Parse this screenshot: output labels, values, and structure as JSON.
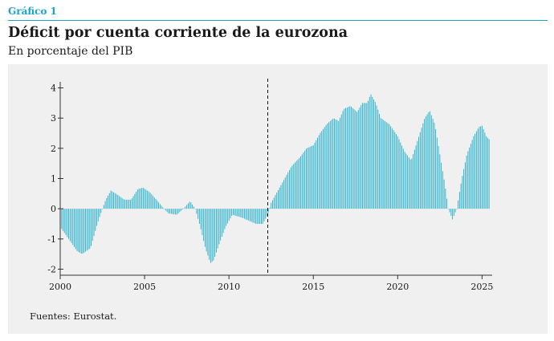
{
  "header": {
    "label": "Gráfico 1",
    "title": "Déficit por cuenta corriente de la eurozona",
    "subtitle": "En porcentaje del PIB"
  },
  "footer": {
    "source": "Fuentes: Eurostat."
  },
  "colors": {
    "accent": "#1aa3c8",
    "bars": "#21b0cc",
    "panel": "#f0f0f0",
    "axis": "#333333"
  },
  "chart_data": {
    "type": "bar",
    "frequency": "monthly",
    "x_start": "2000-01",
    "x_end": "2025-06",
    "xlim": [
      2000,
      2025.6
    ],
    "ylim": [
      -2.2,
      4.2
    ],
    "x_ticks": [
      2000,
      2005,
      2010,
      2015,
      2020,
      2025
    ],
    "x_tick_labels": [
      "2000",
      "2005",
      "2010",
      "2015",
      "2020",
      "2025"
    ],
    "y_ticks": [
      -2,
      -1,
      0,
      1,
      2,
      3,
      4
    ],
    "y_tick_labels": [
      "-2",
      "-1",
      "0",
      "1",
      "2",
      "3",
      "4"
    ],
    "vertical_marker": {
      "x": 2012.3,
      "style": "dashed"
    },
    "anchor_points": [
      [
        2000.0,
        -0.6
      ],
      [
        2000.5,
        -1.0
      ],
      [
        2001.0,
        -1.4
      ],
      [
        2001.3,
        -1.5
      ],
      [
        2001.8,
        -1.3
      ],
      [
        2002.2,
        -0.5
      ],
      [
        2002.5,
        0.0
      ],
      [
        2002.7,
        0.3
      ],
      [
        2003.0,
        0.6
      ],
      [
        2003.3,
        0.5
      ],
      [
        2003.8,
        0.3
      ],
      [
        2004.2,
        0.3
      ],
      [
        2004.6,
        0.65
      ],
      [
        2004.9,
        0.7
      ],
      [
        2005.3,
        0.55
      ],
      [
        2005.7,
        0.3
      ],
      [
        2006.0,
        0.1
      ],
      [
        2006.4,
        -0.15
      ],
      [
        2006.9,
        -0.2
      ],
      [
        2007.3,
        0.0
      ],
      [
        2007.7,
        0.25
      ],
      [
        2008.0,
        0.0
      ],
      [
        2008.3,
        -0.6
      ],
      [
        2008.6,
        -1.3
      ],
      [
        2008.9,
        -1.8
      ],
      [
        2009.1,
        -1.7
      ],
      [
        2009.4,
        -1.2
      ],
      [
        2009.8,
        -0.6
      ],
      [
        2010.2,
        -0.2
      ],
      [
        2010.8,
        -0.3
      ],
      [
        2011.2,
        -0.4
      ],
      [
        2011.6,
        -0.5
      ],
      [
        2012.0,
        -0.5
      ],
      [
        2012.3,
        -0.2
      ],
      [
        2012.5,
        0.2
      ],
      [
        2012.9,
        0.6
      ],
      [
        2013.3,
        1.0
      ],
      [
        2013.7,
        1.4
      ],
      [
        2014.2,
        1.7
      ],
      [
        2014.6,
        2.0
      ],
      [
        2015.0,
        2.1
      ],
      [
        2015.4,
        2.5
      ],
      [
        2015.8,
        2.8
      ],
      [
        2016.2,
        3.0
      ],
      [
        2016.5,
        2.9
      ],
      [
        2016.8,
        3.3
      ],
      [
        2017.2,
        3.4
      ],
      [
        2017.6,
        3.2
      ],
      [
        2017.9,
        3.5
      ],
      [
        2018.2,
        3.5
      ],
      [
        2018.4,
        3.8
      ],
      [
        2018.7,
        3.5
      ],
      [
        2019.0,
        3.0
      ],
      [
        2019.5,
        2.8
      ],
      [
        2020.0,
        2.4
      ],
      [
        2020.4,
        1.9
      ],
      [
        2020.8,
        1.6
      ],
      [
        2021.2,
        2.3
      ],
      [
        2021.6,
        3.0
      ],
      [
        2021.9,
        3.25
      ],
      [
        2022.2,
        2.8
      ],
      [
        2022.5,
        1.8
      ],
      [
        2022.8,
        0.8
      ],
      [
        2023.0,
        0.0
      ],
      [
        2023.25,
        -0.35
      ],
      [
        2023.5,
        0.0
      ],
      [
        2023.8,
        1.0
      ],
      [
        2024.1,
        1.8
      ],
      [
        2024.5,
        2.4
      ],
      [
        2024.8,
        2.7
      ],
      [
        2025.0,
        2.75
      ],
      [
        2025.25,
        2.4
      ],
      [
        2025.5,
        2.25
      ]
    ]
  }
}
